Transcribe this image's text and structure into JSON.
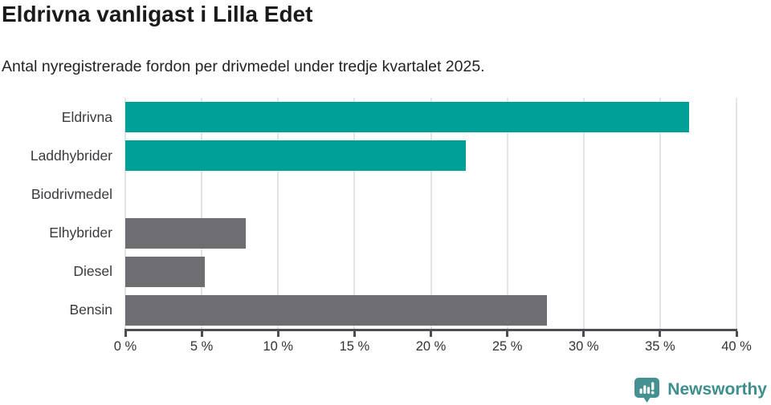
{
  "header": {
    "title": "Eldrivna vanligast i Lilla Edet",
    "subtitle": "Antal nyregistrerade fordon per drivmedel under tredje kvartalet 2025."
  },
  "chart_data": {
    "type": "bar",
    "orientation": "horizontal",
    "title": "Eldrivna vanligast i Lilla Edet",
    "subtitle": "Antal nyregistrerade fordon per drivmedel under tredje kvartalet 2025.",
    "categories": [
      "Eldrivna",
      "Laddhybrider",
      "Biodrivmedel",
      "Elhybrider",
      "Diesel",
      "Bensin"
    ],
    "values": [
      36.9,
      22.3,
      0,
      7.9,
      5.2,
      27.6
    ],
    "unit": "%",
    "bar_colors": [
      "#00a098",
      "#00a098",
      "#6d6d72",
      "#6d6d72",
      "#6d6d72",
      "#6d6d72"
    ],
    "xlim": [
      0,
      40
    ],
    "x_ticks": [
      0,
      5,
      10,
      15,
      20,
      25,
      30,
      35,
      40
    ],
    "x_tick_labels": [
      "0 %",
      "5 %",
      "10 %",
      "15 %",
      "20 %",
      "25 %",
      "30 %",
      "35 %",
      "40 %"
    ],
    "grid": "vertical",
    "legend": "none",
    "xlabel": "",
    "ylabel": ""
  },
  "footer": {
    "brand": "Newsworthy",
    "brand_color": "#3f8e8e",
    "logo_icon": "speech-bubble-bar-chart-icon",
    "logo_color": "#459191"
  },
  "colors": {
    "accent_teal": "#00a098",
    "neutral_gray": "#6d6d72",
    "gridline": "#e4e4e4",
    "axis": "#4c4c52",
    "title_text": "#1a1a1c",
    "body_text": "#333338",
    "background": "#ffffff"
  }
}
